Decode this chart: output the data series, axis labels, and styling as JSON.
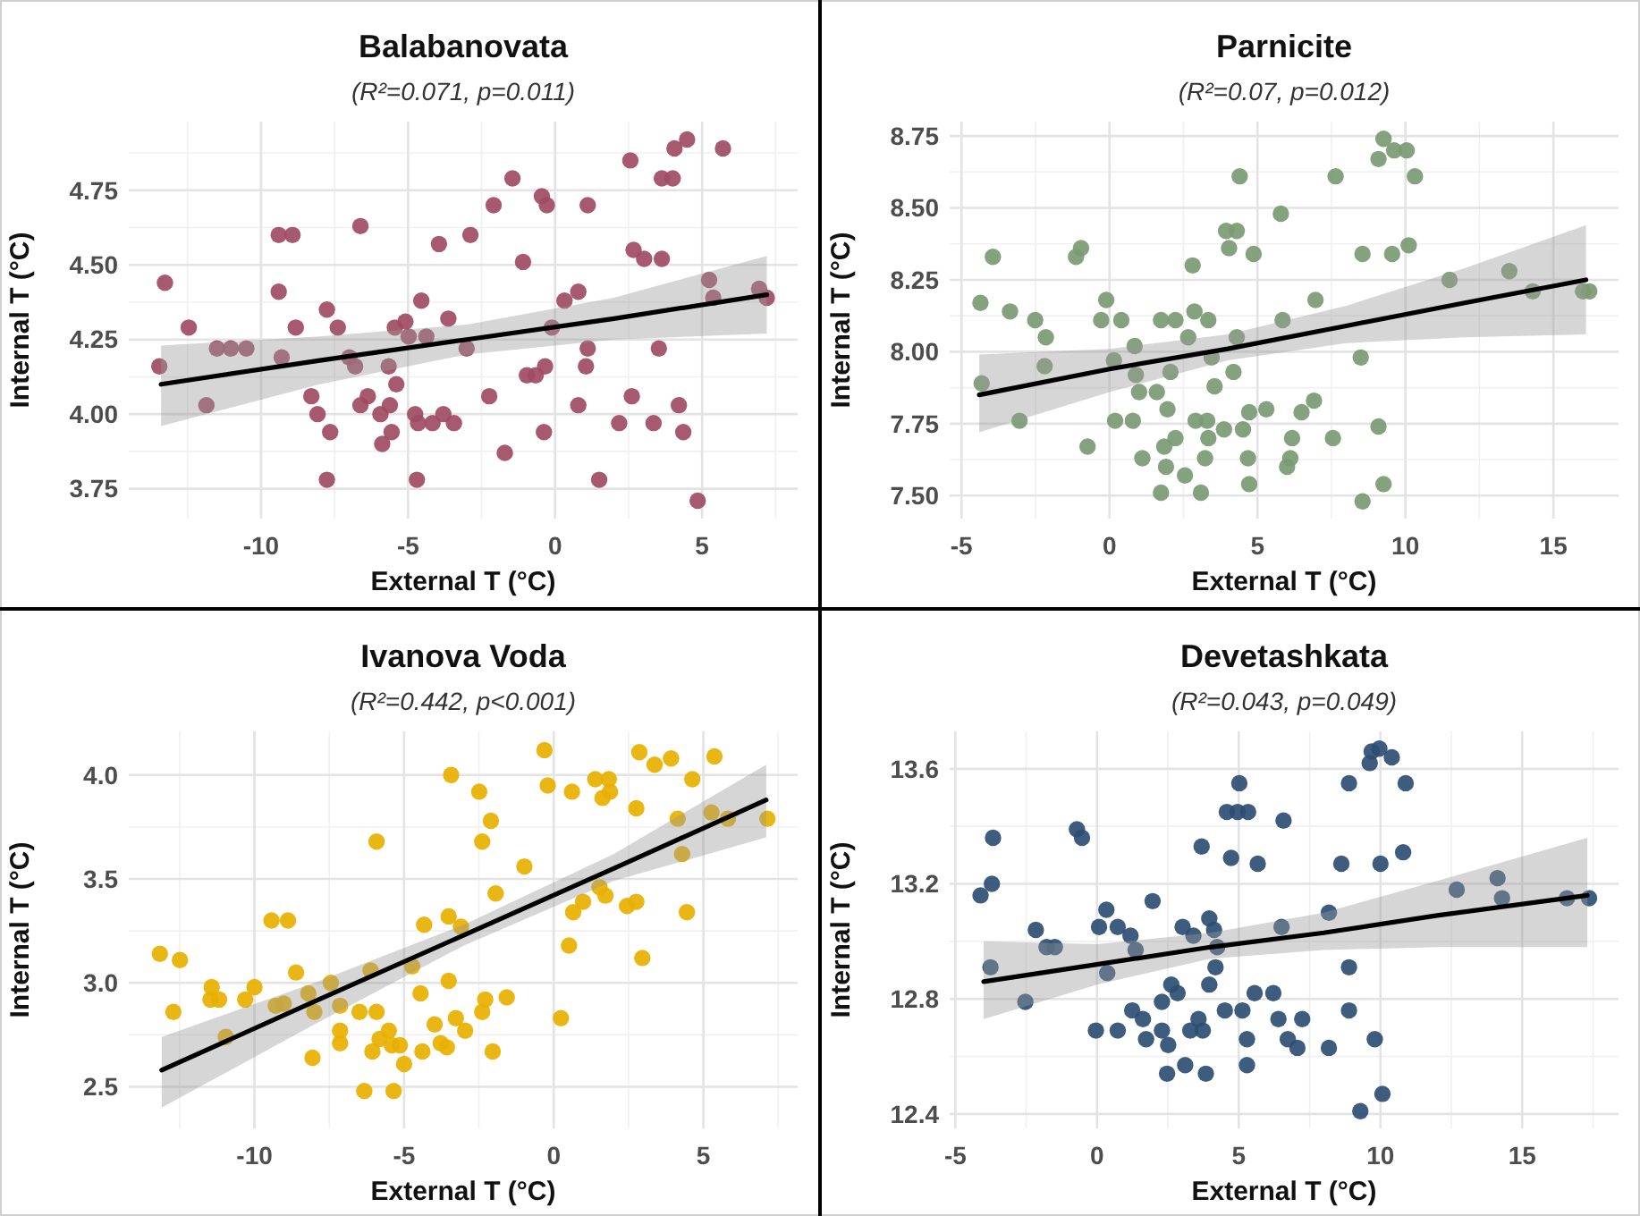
{
  "chart_data": [
    {
      "type": "scatter",
      "title": "Balabanovata",
      "subtitle": "(R²=0.071, p=0.011)",
      "xlabel": "External T (°C)",
      "ylabel": "Internal T (°C)",
      "xlim": [
        -14.5,
        8.25
      ],
      "ylim": [
        3.65,
        4.98
      ],
      "xticks": [
        -10,
        -5,
        0,
        5
      ],
      "yticks": [
        {
          "value": 3.75,
          "label": "3.75"
        },
        {
          "value": 4,
          "label": "4.00"
        },
        {
          "value": 4.25,
          "label": "4.25"
        },
        {
          "value": 4.5,
          "label": "4.50"
        },
        {
          "value": 4.75,
          "label": "4.75"
        }
      ],
      "grid": true,
      "series": [
        {
          "marker": "circle",
          "color": "#a04b64",
          "x": [
            -13.46,
            -13.27,
            -12.46,
            -11.86,
            -11.5,
            -11.03,
            -10.5,
            -9.4,
            -8.93,
            -9.4,
            -9.3,
            -8.82,
            -8.29,
            -8.08,
            -7.76,
            -7.76,
            -7.65,
            -7.39,
            -7.0,
            -6.8,
            -6.62,
            -6.62,
            -6.37,
            -5.94,
            -5.88,
            -5.66,
            -5.62,
            -5.56,
            -5.45,
            -5.4,
            -5.09,
            -4.98,
            -4.76,
            -4.66,
            -4.7,
            -4.55,
            -4.38,
            -4.17,
            -3.95,
            -3.8,
            -3.63,
            -3.44,
            -3.01,
            -2.88,
            -2.24,
            -2.09,
            -1.71,
            -1.45,
            -1.09,
            -0.96,
            -0.66,
            -0.45,
            -0.34,
            -0.28,
            -0.38,
            -0.11,
            0.32,
            0.79,
            0.79,
            1.11,
            1.11,
            1.05,
            1.5,
            2.18,
            2.61,
            2.56,
            2.67,
            3.03,
            3.35,
            3.53,
            3.63,
            3.63,
            4.0,
            4.06,
            4.21,
            4.36,
            4.49,
            4.85,
            5.24,
            5.38,
            5.71,
            6.94,
            7.2
          ],
          "values": [
            4.16,
            4.44,
            4.29,
            4.03,
            4.22,
            4.22,
            4.22,
            4.6,
            4.6,
            4.41,
            4.19,
            4.29,
            4.06,
            4.0,
            4.35,
            3.78,
            3.94,
            4.29,
            4.19,
            4.16,
            4.63,
            4.03,
            4.06,
            4.0,
            3.9,
            4.16,
            4.03,
            3.94,
            4.29,
            4.1,
            4.31,
            4.26,
            4.0,
            3.97,
            3.78,
            4.38,
            4.26,
            3.97,
            4.57,
            4.0,
            4.32,
            3.97,
            4.22,
            4.6,
            4.06,
            4.7,
            3.87,
            4.79,
            4.51,
            4.13,
            4.13,
            4.73,
            4.16,
            4.7,
            3.94,
            4.29,
            4.38,
            4.41,
            4.03,
            4.7,
            4.22,
            4.16,
            3.78,
            3.97,
            4.06,
            4.85,
            4.55,
            4.52,
            3.97,
            4.22,
            4.52,
            4.79,
            4.79,
            4.89,
            4.03,
            3.94,
            4.92,
            3.71,
            4.45,
            4.39,
            4.89,
            4.42,
            4.39
          ]
        },
        {
          "type": "line",
          "marker": "none",
          "color": "#000000",
          "x": [
            -13.4,
            -8,
            -3,
            2,
            7.2
          ],
          "values": [
            4.1,
            4.18,
            4.25,
            4.32,
            4.4
          ],
          "lower": [
            3.96,
            4.1,
            4.2,
            4.25,
            4.27
          ],
          "upper": [
            4.23,
            4.26,
            4.3,
            4.39,
            4.53
          ]
        }
      ]
    },
    {
      "type": "scatter",
      "title": "Parnicite",
      "subtitle": "(R²=0.07, p=0.012)",
      "xlabel": "External T (°C)",
      "ylabel": "Internal T (°C)",
      "xlim": [
        -5.4,
        17.2
      ],
      "ylim": [
        7.42,
        8.8
      ],
      "xticks": [
        -5,
        0,
        5,
        10,
        15
      ],
      "yticks": [
        {
          "value": 7.5,
          "label": "7.50"
        },
        {
          "value": 7.75,
          "label": "7.75"
        },
        {
          "value": 8,
          "label": "8.00"
        },
        {
          "value": 8.25,
          "label": "8.25"
        },
        {
          "value": 8.5,
          "label": "8.50"
        },
        {
          "value": 8.75,
          "label": "8.75"
        }
      ],
      "grid": true,
      "series": [
        {
          "marker": "circle",
          "color": "#7a9a72",
          "x": [
            -4.36,
            -4.32,
            -3.94,
            -3.36,
            -3.04,
            -2.51,
            -2.19,
            -2.15,
            -1.13,
            -0.96,
            -0.74,
            -0.28,
            -0.11,
            0.15,
            0.19,
            0.4,
            0.79,
            0.85,
            0.89,
            1.0,
            1.11,
            1.6,
            1.74,
            1.74,
            1.85,
            1.91,
            1.96,
            2.06,
            2.23,
            2.23,
            2.55,
            2.66,
            2.81,
            2.87,
            2.91,
            3.09,
            3.23,
            3.3,
            3.34,
            3.34,
            3.45,
            3.55,
            3.87,
            3.94,
            4.04,
            4.19,
            4.3,
            4.3,
            4.4,
            4.51,
            4.72,
            4.68,
            4.72,
            4.87,
            5.3,
            5.79,
            5.85,
            6.0,
            6.11,
            6.17,
            6.49,
            6.91,
            6.96,
            7.55,
            7.64,
            8.49,
            8.55,
            8.55,
            9.09,
            9.09,
            9.26,
            9.26,
            9.55,
            9.62,
            10.04,
            10.11,
            10.32,
            11.49,
            13.51,
            14.3,
            16.0,
            16.21
          ],
          "values": [
            8.17,
            7.89,
            8.33,
            8.14,
            7.76,
            8.11,
            7.95,
            8.05,
            8.33,
            8.36,
            7.67,
            8.11,
            8.18,
            7.97,
            7.76,
            8.11,
            7.76,
            8.02,
            7.92,
            7.86,
            7.63,
            7.86,
            8.11,
            7.51,
            7.67,
            7.6,
            7.8,
            7.93,
            8.11,
            7.7,
            7.57,
            8.05,
            8.3,
            8.14,
            7.76,
            7.51,
            7.63,
            7.76,
            7.7,
            8.11,
            7.98,
            7.88,
            7.73,
            8.42,
            8.36,
            7.93,
            8.42,
            8.05,
            8.61,
            7.73,
            7.79,
            7.63,
            7.54,
            8.34,
            7.8,
            8.48,
            8.11,
            7.6,
            7.63,
            7.7,
            7.79,
            7.83,
            8.18,
            7.7,
            8.61,
            7.98,
            8.34,
            7.48,
            7.74,
            8.67,
            8.74,
            7.54,
            8.34,
            8.7,
            8.7,
            8.37,
            8.61,
            8.25,
            8.28,
            8.21,
            8.21,
            8.21
          ]
        },
        {
          "type": "line",
          "marker": "none",
          "color": "#000000",
          "x": [
            -4.4,
            0,
            4,
            8,
            12,
            16.1
          ],
          "values": [
            7.85,
            7.94,
            8.01,
            8.09,
            8.17,
            8.25
          ],
          "lower": [
            7.72,
            7.86,
            7.97,
            8.03,
            8.05,
            8.06
          ],
          "upper": [
            7.99,
            8.01,
            8.06,
            8.16,
            8.29,
            8.44
          ]
        }
      ]
    },
    {
      "type": "scatter",
      "title": "Ivanova Voda",
      "subtitle": "(R²=0.442, p<0.001)",
      "xlabel": "External T (°C)",
      "ylabel": "Internal T (°C)",
      "xlim": [
        -14.2,
        8.15
      ],
      "ylim": [
        2.3,
        4.21
      ],
      "xticks": [
        -10,
        -5,
        0,
        5
      ],
      "yticks": [
        {
          "value": 2.5,
          "label": "2.5"
        },
        {
          "value": 3,
          "label": "3.0"
        },
        {
          "value": 3.5,
          "label": "3.5"
        },
        {
          "value": 4,
          "label": "4.0"
        }
      ],
      "grid": true,
      "series": [
        {
          "marker": "circle",
          "color": "#e8b000",
          "x": [
            -13.16,
            -12.71,
            -12.49,
            -11.43,
            -11.47,
            -11.18,
            -10.96,
            -10.31,
            -10.0,
            -9.43,
            -8.88,
            -9.29,
            -9.02,
            -8.61,
            -8.2,
            -8.06,
            -8.0,
            -7.45,
            -7.14,
            -7.14,
            -7.14,
            -6.49,
            -6.33,
            -6.12,
            -6.06,
            -5.92,
            -5.92,
            -5.82,
            -5.51,
            -5.41,
            -5.35,
            -5.14,
            -5.0,
            -4.73,
            -4.45,
            -4.39,
            -4.33,
            -3.98,
            -3.78,
            -3.57,
            -3.51,
            -3.51,
            -3.43,
            -3.27,
            -3.1,
            -2.96,
            -2.49,
            -2.39,
            -2.39,
            -2.29,
            -2.1,
            -2.04,
            -1.94,
            -1.57,
            -0.98,
            -0.31,
            -0.2,
            0.24,
            0.51,
            0.61,
            0.65,
            0.98,
            1.39,
            1.53,
            1.63,
            1.73,
            1.84,
            1.88,
            2.45,
            2.76,
            2.76,
            2.86,
            2.96,
            3.37,
            3.92,
            4.14,
            4.29,
            4.45,
            4.63,
            5.37,
            5.27,
            5.82,
            7.14
          ],
          "values": [
            3.14,
            2.86,
            3.11,
            2.98,
            2.92,
            2.92,
            2.74,
            2.92,
            2.98,
            3.3,
            3.3,
            2.89,
            2.9,
            3.05,
            2.95,
            2.64,
            2.86,
            3.0,
            2.89,
            2.77,
            2.71,
            2.86,
            2.48,
            3.06,
            2.67,
            2.86,
            3.68,
            2.73,
            2.77,
            2.7,
            2.48,
            2.7,
            2.61,
            3.08,
            2.95,
            2.67,
            3.28,
            2.8,
            2.71,
            2.69,
            3.32,
            3.01,
            4.0,
            2.83,
            3.27,
            2.77,
            3.92,
            3.68,
            2.86,
            2.92,
            3.78,
            2.67,
            3.43,
            2.93,
            3.56,
            4.12,
            3.95,
            2.83,
            3.18,
            3.92,
            3.34,
            3.39,
            3.98,
            3.46,
            3.89,
            3.42,
            3.98,
            3.92,
            3.37,
            3.39,
            3.84,
            4.11,
            3.12,
            4.05,
            4.08,
            3.79,
            3.62,
            3.34,
            3.98,
            4.09,
            3.82,
            3.79,
            3.79
          ]
        },
        {
          "type": "line",
          "marker": "none",
          "color": "#000000",
          "x": [
            -13.1,
            -8,
            -3,
            2,
            7.1
          ],
          "values": [
            2.58,
            2.91,
            3.23,
            3.55,
            3.88
          ],
          "lower": [
            2.4,
            2.8,
            3.18,
            3.49,
            3.7
          ],
          "upper": [
            2.74,
            3.0,
            3.28,
            3.62,
            4.05
          ]
        }
      ]
    },
    {
      "type": "scatter",
      "title": "Devetashkata",
      "subtitle": "(R²=0.043, p=0.049)",
      "xlabel": "External T (°C)",
      "ylabel": "Internal T (°C)",
      "xlim": [
        -5.2,
        18.4
      ],
      "ylim": [
        12.35,
        13.73
      ],
      "xticks": [
        -5,
        0,
        5,
        10,
        15
      ],
      "yticks": [
        12.4,
        12.8,
        13.2,
        13.6
      ],
      "grid": true,
      "series": [
        {
          "marker": "circle",
          "color": "#2d4e73",
          "x": [
            -4.11,
            -3.71,
            -3.67,
            -3.76,
            -2.53,
            -2.16,
            -1.78,
            -1.49,
            -0.71,
            -0.53,
            -0.04,
            0.07,
            0.33,
            0.36,
            0.73,
            0.73,
            1.18,
            1.24,
            1.36,
            1.62,
            1.73,
            1.96,
            2.29,
            2.29,
            2.47,
            2.51,
            2.62,
            2.84,
            3.02,
            3.11,
            3.29,
            3.4,
            3.58,
            3.69,
            3.73,
            3.84,
            3.96,
            3.96,
            4.13,
            4.18,
            4.24,
            4.51,
            4.58,
            4.73,
            4.96,
            5.02,
            5.13,
            5.29,
            5.29,
            5.33,
            5.67,
            5.56,
            6.22,
            6.4,
            6.51,
            6.58,
            6.73,
            7.07,
            7.24,
            8.18,
            8.18,
            8.62,
            8.89,
            8.89,
            8.89,
            9.29,
            9.62,
            9.69,
            9.8,
            9.96,
            10.0,
            10.07,
            10.4,
            10.8,
            10.89,
            12.69,
            14.13,
            14.29,
            16.58,
            17.36
          ],
          "values": [
            13.16,
            13.2,
            13.36,
            12.91,
            12.79,
            13.04,
            12.98,
            12.98,
            13.39,
            13.36,
            12.69,
            13.05,
            13.11,
            12.89,
            13.05,
            12.69,
            13.02,
            12.76,
            12.97,
            12.73,
            12.66,
            13.14,
            12.79,
            12.69,
            12.54,
            12.64,
            12.85,
            12.82,
            13.05,
            12.57,
            12.69,
            13.02,
            12.73,
            13.33,
            12.69,
            12.54,
            12.85,
            13.08,
            13.04,
            12.91,
            12.98,
            12.76,
            13.45,
            13.29,
            13.45,
            13.55,
            12.76,
            12.66,
            12.57,
            13.45,
            13.27,
            12.82,
            12.82,
            12.73,
            13.05,
            13.42,
            12.66,
            12.63,
            12.73,
            12.63,
            13.1,
            13.27,
            13.55,
            12.91,
            12.76,
            12.41,
            13.62,
            13.66,
            12.66,
            13.67,
            13.27,
            12.47,
            13.64,
            13.31,
            13.55,
            13.18,
            13.22,
            13.15,
            13.15,
            13.15
          ]
        },
        {
          "type": "line",
          "marker": "none",
          "color": "#000000",
          "x": [
            -4,
            0,
            4,
            8,
            12,
            17.3
          ],
          "values": [
            12.86,
            12.92,
            12.98,
            13.03,
            13.09,
            13.16
          ],
          "lower": [
            12.73,
            12.85,
            12.94,
            12.97,
            12.98,
            12.98
          ],
          "upper": [
            13.0,
            12.99,
            13.03,
            13.1,
            13.21,
            13.36
          ]
        }
      ]
    }
  ]
}
